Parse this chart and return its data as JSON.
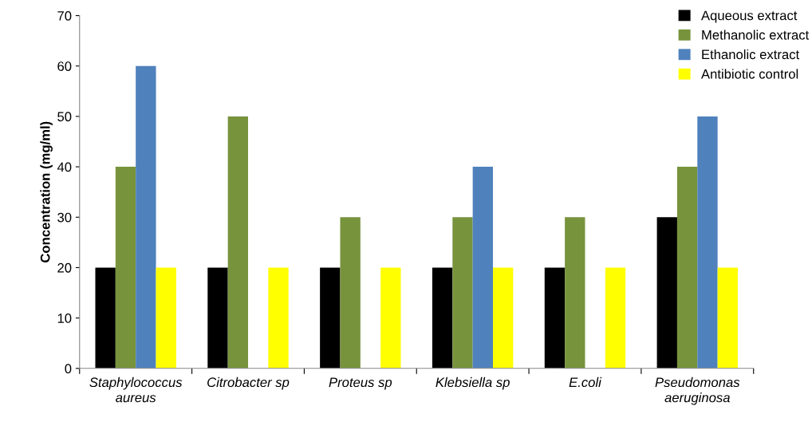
{
  "chart_data": {
    "type": "bar",
    "ylabel": "Concentration (mg/ml)",
    "categories": [
      "Staphylococcus aureus",
      "Citrobacter sp",
      "Proteus sp",
      "Klebsiella sp",
      "E.coli",
      "Pseudomonas aeruginosa"
    ],
    "series": [
      {
        "name": "Aqueous extract",
        "color": "#000000",
        "values": [
          20,
          20,
          20,
          20,
          20,
          30
        ]
      },
      {
        "name": "Methanolic extract",
        "color": "#77933c",
        "values": [
          40,
          50,
          30,
          30,
          30,
          40
        ]
      },
      {
        "name": "Ethanolic extract",
        "color": "#4f81bd",
        "values": [
          60,
          null,
          null,
          40,
          null,
          50
        ]
      },
      {
        "name": "Antibiotic control",
        "color": "#ffff00",
        "values": [
          20,
          20,
          20,
          20,
          20,
          20
        ]
      }
    ],
    "ylim": [
      0,
      70
    ],
    "yticks": [
      0,
      10,
      20,
      30,
      40,
      50,
      60,
      70
    ],
    "grid": false,
    "legend": "top right"
  }
}
